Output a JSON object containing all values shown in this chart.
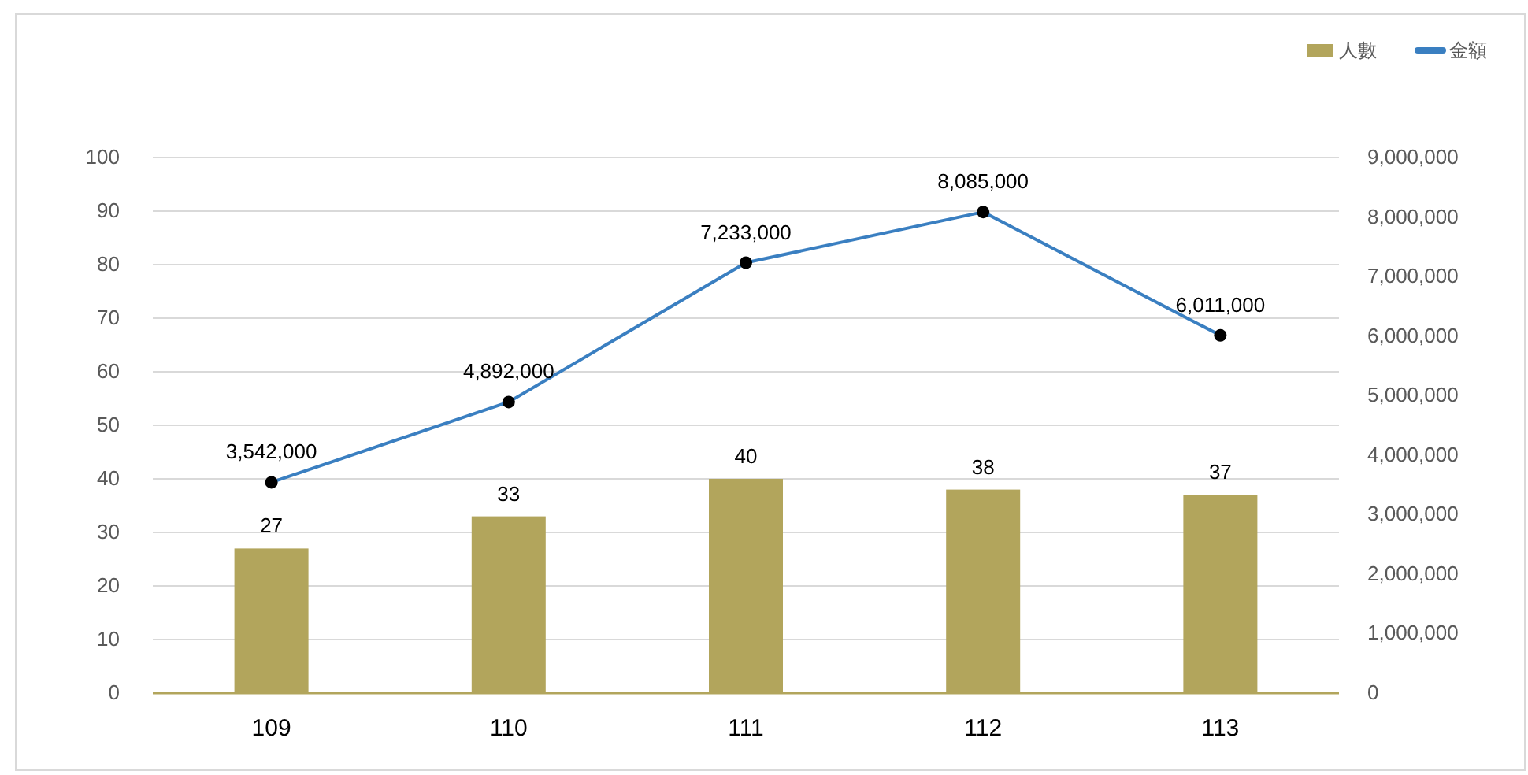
{
  "chart_data": {
    "type": "bar",
    "categories": [
      "109",
      "110",
      "111",
      "112",
      "113"
    ],
    "series": [
      {
        "name": "人數",
        "color": "#b2a55c",
        "values": [
          27,
          33,
          40,
          38,
          37
        ],
        "value_labels": [
          "27",
          "33",
          "40",
          "38",
          "37"
        ]
      },
      {
        "name": "金額",
        "type": "line",
        "axis": "y2",
        "color": "#3a7fc1",
        "marker": "circle",
        "values": [
          3542000,
          4892000,
          7233000,
          8085000,
          6011000
        ],
        "value_labels": [
          "3,542,000",
          "4,892,000",
          "7,233,000",
          "8,085,000",
          "6,011,000"
        ]
      }
    ],
    "ylim": [
      0,
      100
    ],
    "yticks": [
      0,
      10,
      20,
      30,
      40,
      50,
      60,
      70,
      80,
      90,
      100
    ],
    "y2lim": [
      0,
      9000000
    ],
    "y2ticks": [
      {
        "value": 0,
        "label": "0"
      },
      {
        "value": 1000000,
        "label": "1,000,000"
      },
      {
        "value": 2000000,
        "label": "2,000,000"
      },
      {
        "value": 3000000,
        "label": "3,000,000"
      },
      {
        "value": 4000000,
        "label": "4,000,000"
      },
      {
        "value": 5000000,
        "label": "5,000,000"
      },
      {
        "value": 6000000,
        "label": "6,000,000"
      },
      {
        "value": 7000000,
        "label": "7,000,000"
      },
      {
        "value": 8000000,
        "label": "8,000,000"
      },
      {
        "value": 9000000,
        "label": "9,000,000"
      }
    ],
    "grid": "y",
    "legend": "top right"
  }
}
